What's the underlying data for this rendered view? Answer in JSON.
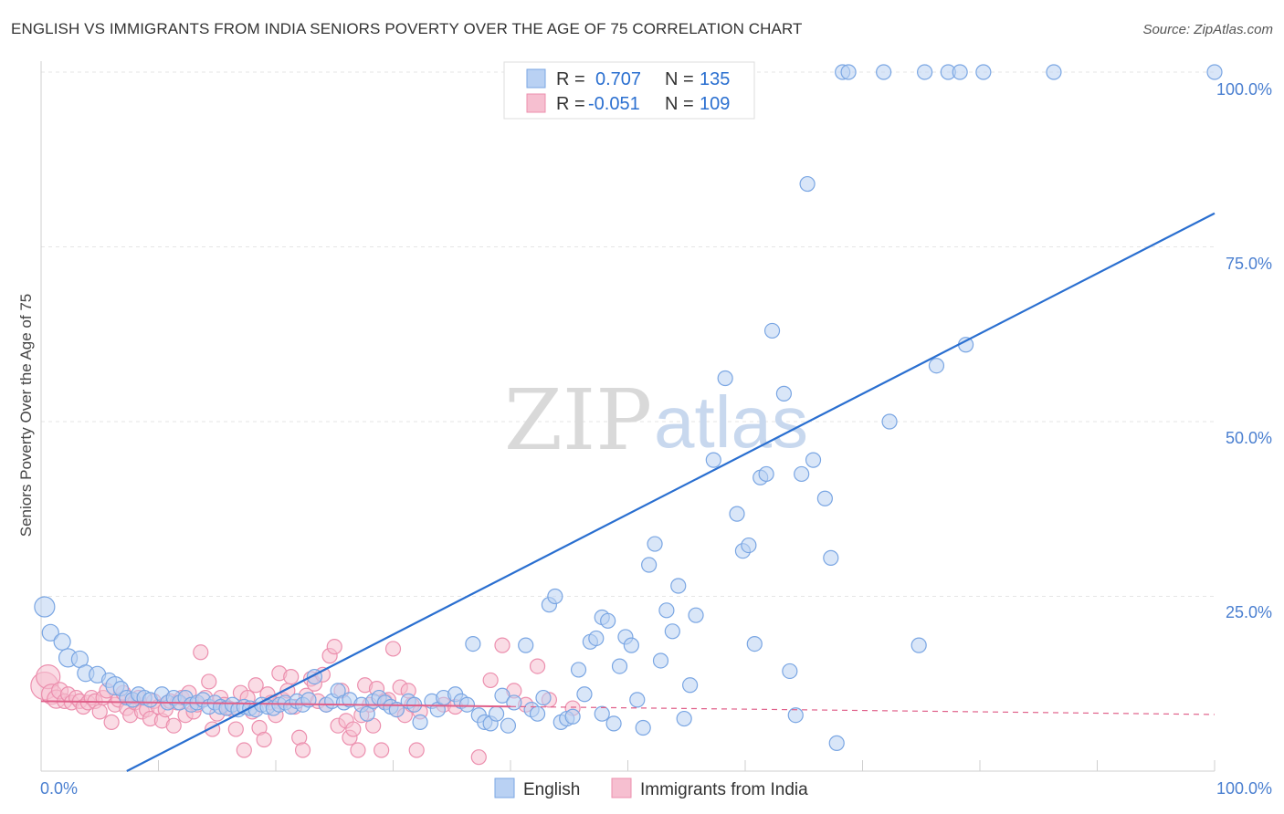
{
  "header": {
    "title": "ENGLISH VS IMMIGRANTS FROM INDIA SENIORS POVERTY OVER THE AGE OF 75 CORRELATION CHART",
    "source": "Source: ZipAtlas.com"
  },
  "watermark": {
    "zip": "ZIP",
    "atlas": "atlas"
  },
  "legend": {
    "english": {
      "r_label": "R =",
      "r_value": "0.707",
      "n_label": "N =",
      "n_value": "135"
    },
    "india": {
      "r_label": "R =",
      "r_value": "-0.051",
      "n_label": "N =",
      "n_value": "109"
    }
  },
  "colors": {
    "english_fill": "#b9d1f3",
    "english_stroke": "#7aa6e3",
    "english_line": "#2a6fd0",
    "india_fill": "#f6bfd0",
    "india_stroke": "#ec8fae",
    "india_line": "#e0608a",
    "tick_text": "#4a7fd0",
    "grid": "#e6e6e6"
  },
  "chart_data": {
    "type": "scatter",
    "title": "ENGLISH VS IMMIGRANTS FROM INDIA SENIORS POVERTY OVER THE AGE OF 75 CORRELATION CHART",
    "xlabel": "",
    "ylabel": "Seniors Poverty Over the Age of 75",
    "xlim": [
      0,
      100
    ],
    "ylim": [
      0,
      100
    ],
    "x_tick_labels": [
      "0.0%",
      "100.0%"
    ],
    "y_tick_labels": [
      "100.0%",
      "75.0%",
      "50.0%",
      "25.0%"
    ],
    "y_tick_values": [
      100,
      75,
      50,
      25
    ],
    "series": [
      {
        "name": "English",
        "r": 0.707,
        "n": 135,
        "trend": {
          "x0": 7.3,
          "y0": 0,
          "x1": 100,
          "y1": 79.8
        },
        "points": [
          [
            0.3,
            23.5,
            22
          ],
          [
            0.8,
            19.8,
            18
          ],
          [
            1.8,
            18.5,
            18
          ],
          [
            2.3,
            16.2,
            20
          ],
          [
            3.3,
            16,
            18
          ],
          [
            3.8,
            14,
            18
          ],
          [
            4.8,
            13.8,
            18
          ],
          [
            5.8,
            13,
            16
          ],
          [
            6.3,
            12.2,
            20
          ],
          [
            6.8,
            11.8,
            16
          ],
          [
            7.3,
            10.5,
            16
          ],
          [
            7.8,
            10.2,
            16
          ],
          [
            8.3,
            11,
            16
          ],
          [
            8.8,
            10.5,
            16
          ],
          [
            9.3,
            10.2,
            16
          ],
          [
            10.3,
            11,
            16
          ],
          [
            10.8,
            9.8,
            16
          ],
          [
            11.3,
            10.5,
            16
          ],
          [
            11.8,
            9.8,
            16
          ],
          [
            12.3,
            10.5,
            16
          ],
          [
            12.8,
            9.5,
            16
          ],
          [
            13.3,
            9.8,
            16
          ],
          [
            13.8,
            10.2,
            16
          ],
          [
            14.3,
            9.2,
            16
          ],
          [
            14.8,
            9.8,
            16
          ],
          [
            15.3,
            9.2,
            16
          ],
          [
            15.8,
            9,
            16
          ],
          [
            16.3,
            9.5,
            16
          ],
          [
            16.8,
            8.8,
            16
          ],
          [
            17.3,
            9.2,
            16
          ],
          [
            17.8,
            9,
            16
          ],
          [
            18.3,
            8.8,
            16
          ],
          [
            18.8,
            9.5,
            16
          ],
          [
            19.3,
            9.2,
            16
          ],
          [
            19.8,
            9,
            16
          ],
          [
            20.3,
            9.5,
            16
          ],
          [
            20.8,
            9.8,
            16
          ],
          [
            21.3,
            9.2,
            16
          ],
          [
            21.8,
            10,
            16
          ],
          [
            22.3,
            9.5,
            16
          ],
          [
            22.8,
            10.2,
            16
          ],
          [
            23.3,
            13.5,
            16
          ],
          [
            24.3,
            9.5,
            16
          ],
          [
            24.8,
            10,
            16
          ],
          [
            25.3,
            11.5,
            16
          ],
          [
            25.8,
            9.8,
            16
          ],
          [
            26.3,
            10.2,
            16
          ],
          [
            27.3,
            9.5,
            16
          ],
          [
            27.8,
            8.2,
            16
          ],
          [
            28.3,
            10,
            16
          ],
          [
            28.8,
            10.5,
            16
          ],
          [
            29.3,
            9.8,
            16
          ],
          [
            29.8,
            9.2,
            16
          ],
          [
            30.3,
            8.8,
            16
          ],
          [
            31.3,
            10,
            16
          ],
          [
            31.8,
            9.5,
            16
          ],
          [
            32.3,
            7,
            16
          ],
          [
            33.3,
            10,
            16
          ],
          [
            33.8,
            8.8,
            16
          ],
          [
            34.3,
            10.5,
            16
          ],
          [
            35.3,
            11,
            16
          ],
          [
            35.8,
            10,
            16
          ],
          [
            36.3,
            9.5,
            16
          ],
          [
            36.8,
            18.2,
            16
          ],
          [
            37.3,
            8,
            16
          ],
          [
            37.8,
            7,
            16
          ],
          [
            38.3,
            6.8,
            16
          ],
          [
            38.8,
            8.2,
            16
          ],
          [
            39.3,
            10.8,
            16
          ],
          [
            39.8,
            6.5,
            16
          ],
          [
            40.3,
            9.8,
            16
          ],
          [
            41.3,
            18,
            16
          ],
          [
            41.8,
            8.8,
            16
          ],
          [
            42.3,
            8.2,
            16
          ],
          [
            42.8,
            10.5,
            16
          ],
          [
            43.3,
            23.8,
            16
          ],
          [
            43.8,
            25,
            16
          ],
          [
            44.3,
            7,
            16
          ],
          [
            44.8,
            7.5,
            16
          ],
          [
            45.3,
            7.8,
            16
          ],
          [
            45.8,
            14.5,
            16
          ],
          [
            46.3,
            11,
            16
          ],
          [
            46.8,
            18.5,
            16
          ],
          [
            47.3,
            19,
            16
          ],
          [
            47.8,
            8.2,
            16
          ],
          [
            47.8,
            22,
            16
          ],
          [
            48.3,
            21.5,
            16
          ],
          [
            48.8,
            6.8,
            16
          ],
          [
            49.3,
            15,
            16
          ],
          [
            49.8,
            19.2,
            16
          ],
          [
            50.3,
            18,
            16
          ],
          [
            50.8,
            10.2,
            16
          ],
          [
            51.3,
            6.2,
            16
          ],
          [
            51.8,
            29.5,
            16
          ],
          [
            52.3,
            32.5,
            16
          ],
          [
            52.8,
            15.8,
            16
          ],
          [
            53.3,
            23,
            16
          ],
          [
            53.8,
            20,
            16
          ],
          [
            54.3,
            26.5,
            16
          ],
          [
            54.8,
            7.5,
            16
          ],
          [
            55.3,
            12.3,
            16
          ],
          [
            55.8,
            22.3,
            16
          ],
          [
            57.3,
            44.5,
            16
          ],
          [
            58.3,
            56.2,
            16
          ],
          [
            59.3,
            36.8,
            16
          ],
          [
            59.8,
            31.5,
            16
          ],
          [
            60.3,
            32.3,
            16
          ],
          [
            60.8,
            18.2,
            16
          ],
          [
            61.3,
            42,
            16
          ],
          [
            61.8,
            42.5,
            16
          ],
          [
            62.3,
            63,
            16
          ],
          [
            63.3,
            54,
            16
          ],
          [
            63.8,
            14.3,
            16
          ],
          [
            64.3,
            8,
            16
          ],
          [
            64.8,
            42.5,
            16
          ],
          [
            65.3,
            84,
            16
          ],
          [
            65.8,
            44.5,
            16
          ],
          [
            66.8,
            39,
            16
          ],
          [
            67.3,
            30.5,
            16
          ],
          [
            67.8,
            4,
            16
          ],
          [
            68.3,
            100,
            16
          ],
          [
            68.8,
            100,
            16
          ],
          [
            71.8,
            100,
            16
          ],
          [
            72.3,
            50,
            16
          ],
          [
            74.8,
            18,
            16
          ],
          [
            75.3,
            100,
            16
          ],
          [
            76.3,
            58,
            16
          ],
          [
            77.3,
            100,
            16
          ],
          [
            78.3,
            100,
            16
          ],
          [
            78.8,
            61,
            16
          ],
          [
            80.3,
            100,
            16
          ],
          [
            86.3,
            100,
            16
          ],
          [
            100,
            100,
            16
          ]
        ]
      },
      {
        "name": "Immigrants from India",
        "r": -0.051,
        "n": 109,
        "trend": {
          "x0": 0,
          "y0": 10,
          "x1": 100,
          "y1": 8.1
        },
        "points": [
          [
            0.3,
            12.2,
            30
          ],
          [
            0.6,
            13.5,
            26
          ],
          [
            0.9,
            11,
            22
          ],
          [
            1.3,
            10.3,
            20
          ],
          [
            1.6,
            11.5,
            18
          ],
          [
            2.0,
            10,
            16
          ],
          [
            2.3,
            11,
            16
          ],
          [
            2.6,
            9.8,
            16
          ],
          [
            3.0,
            10.5,
            16
          ],
          [
            3.3,
            10,
            16
          ],
          [
            3.6,
            9.2,
            16
          ],
          [
            4.0,
            9.8,
            16
          ],
          [
            4.3,
            10.5,
            16
          ],
          [
            4.6,
            10,
            16
          ],
          [
            5.0,
            8.5,
            16
          ],
          [
            5.3,
            10.5,
            16
          ],
          [
            5.6,
            11.5,
            16
          ],
          [
            6.0,
            7,
            16
          ],
          [
            6.3,
            9.5,
            16
          ],
          [
            6.6,
            10.2,
            16
          ],
          [
            7.0,
            11.2,
            16
          ],
          [
            7.3,
            9,
            16
          ],
          [
            7.6,
            8,
            16
          ],
          [
            8.0,
            9.8,
            16
          ],
          [
            8.3,
            10.5,
            16
          ],
          [
            8.6,
            8.5,
            16
          ],
          [
            9.0,
            8.8,
            16
          ],
          [
            9.3,
            7.5,
            16
          ],
          [
            9.6,
            10,
            16
          ],
          [
            10.0,
            9.2,
            16
          ],
          [
            10.3,
            7.2,
            16
          ],
          [
            10.6,
            8.8,
            16
          ],
          [
            11.0,
            10,
            16
          ],
          [
            11.3,
            6.5,
            16
          ],
          [
            11.6,
            9.8,
            16
          ],
          [
            12.0,
            10.5,
            16
          ],
          [
            12.3,
            8,
            16
          ],
          [
            12.6,
            11.2,
            16
          ],
          [
            13.0,
            8.5,
            16
          ],
          [
            13.3,
            9.5,
            16
          ],
          [
            13.6,
            17,
            16
          ],
          [
            14.0,
            10.5,
            16
          ],
          [
            14.3,
            12.8,
            16
          ],
          [
            14.6,
            6,
            16
          ],
          [
            15.0,
            8.2,
            16
          ],
          [
            15.3,
            10.5,
            16
          ],
          [
            15.6,
            9.5,
            16
          ],
          [
            16.0,
            9,
            16
          ],
          [
            16.3,
            8.8,
            16
          ],
          [
            16.6,
            6,
            16
          ],
          [
            17.0,
            11.2,
            16
          ],
          [
            17.3,
            3,
            16
          ],
          [
            17.6,
            10.5,
            16
          ],
          [
            18.0,
            8.5,
            16
          ],
          [
            18.3,
            12.3,
            16
          ],
          [
            18.6,
            6.2,
            16
          ],
          [
            19.0,
            4.5,
            16
          ],
          [
            19.3,
            11,
            16
          ],
          [
            19.6,
            9.8,
            16
          ],
          [
            20.0,
            8,
            16
          ],
          [
            20.3,
            14,
            16
          ],
          [
            20.6,
            10.2,
            16
          ],
          [
            21.0,
            11.5,
            16
          ],
          [
            21.3,
            13.5,
            16
          ],
          [
            21.6,
            9.2,
            16
          ],
          [
            22.0,
            4.8,
            16
          ],
          [
            22.3,
            3,
            16
          ],
          [
            22.6,
            10.8,
            16
          ],
          [
            23.0,
            13.2,
            16
          ],
          [
            23.3,
            12.5,
            16
          ],
          [
            23.6,
            10,
            16
          ],
          [
            24.0,
            13.8,
            16
          ],
          [
            24.3,
            9.5,
            16
          ],
          [
            24.6,
            16.5,
            16
          ],
          [
            25.0,
            17.8,
            16
          ],
          [
            25.3,
            6.5,
            16
          ],
          [
            25.6,
            11.5,
            16
          ],
          [
            26.0,
            7.2,
            16
          ],
          [
            26.3,
            4.8,
            16
          ],
          [
            26.6,
            6,
            16
          ],
          [
            27.0,
            3,
            16
          ],
          [
            27.3,
            8,
            16
          ],
          [
            27.6,
            12.3,
            16
          ],
          [
            28.0,
            9.5,
            16
          ],
          [
            28.3,
            6.5,
            16
          ],
          [
            28.6,
            11.8,
            16
          ],
          [
            29.0,
            3,
            16
          ],
          [
            29.3,
            10,
            16
          ],
          [
            29.6,
            10.2,
            16
          ],
          [
            30.0,
            17.5,
            16
          ],
          [
            30.3,
            8.8,
            16
          ],
          [
            30.6,
            12,
            16
          ],
          [
            31.0,
            8,
            16
          ],
          [
            31.3,
            11.5,
            16
          ],
          [
            31.6,
            9.5,
            16
          ],
          [
            32.0,
            3,
            16
          ],
          [
            32.3,
            8.5,
            16
          ],
          [
            34.3,
            9.5,
            16
          ],
          [
            35.3,
            9.2,
            16
          ],
          [
            37.3,
            2,
            16
          ],
          [
            38.3,
            13,
            16
          ],
          [
            39.3,
            18,
            16
          ],
          [
            40.3,
            11.5,
            16
          ],
          [
            41.3,
            9.5,
            16
          ],
          [
            42.3,
            15,
            16
          ],
          [
            43.3,
            10.2,
            16
          ],
          [
            45.3,
            9,
            16
          ]
        ]
      }
    ]
  },
  "bottom_legend": {
    "english": "English",
    "india": "Immigrants from India"
  }
}
